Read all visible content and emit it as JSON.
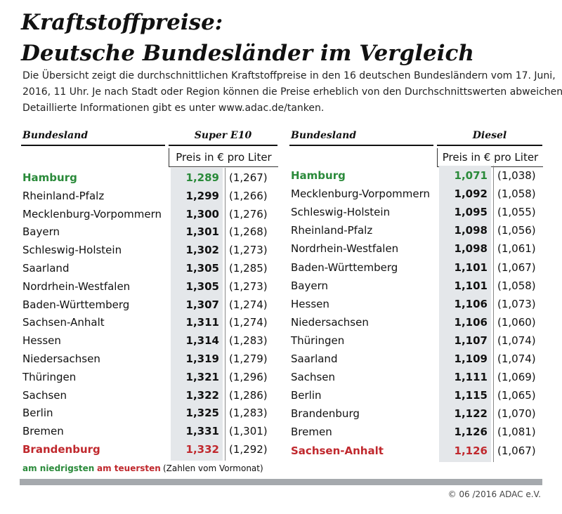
{
  "title": [
    "Kraftstoffpreise:",
    "Deutsche Bundesländer im Vergleich"
  ],
  "intro": [
    "Die Übersicht zeigt die durchschnittlichen Kraftstoffpreise in den 16 deutschen Bundesländern vom 17. Juni,",
    "2016, 11 Uhr. Je nach Stadt oder Region können die Preise erheblich von den Durchschnittswerten abweichen.",
    "Detaillierte Informationen gibt es unter www.adac.de/tanken."
  ],
  "tables": [
    {
      "header": "Bundesland",
      "fuel": "Super E10",
      "unit": "Preis in € pro Liter",
      "rows": [
        [
          "Hamburg",
          "1,289",
          "(1,267)"
        ],
        [
          "Rheinland-Pfalz",
          "1,299",
          "(1,266)"
        ],
        [
          "Mecklenburg-Vorpommern",
          "1,300",
          "(1,276)"
        ],
        [
          "Bayern",
          "1,301",
          "(1,268)"
        ],
        [
          "Schleswig-Holstein",
          "1,302",
          "(1,273)"
        ],
        [
          "Saarland",
          "1,305",
          "(1,285)"
        ],
        [
          "Nordrhein-Westfalen",
          "1,305",
          "(1,273)"
        ],
        [
          "Baden-Württemberg",
          "1,307",
          "(1,274)"
        ],
        [
          "Sachsen-Anhalt",
          "1,311",
          "(1,274)"
        ],
        [
          "Hessen",
          "1,314",
          "(1,283)"
        ],
        [
          "Niedersachsen",
          "1,319",
          "(1,279)"
        ],
        [
          "Thüringen",
          "1,321",
          "(1,296)"
        ],
        [
          "Sachsen",
          "1,322",
          "(1,286)"
        ],
        [
          "Berlin",
          "1,325",
          "(1,283)"
        ],
        [
          "Bremen",
          "1,331",
          "(1,301)"
        ],
        [
          "Brandenburg",
          "1,332",
          "(1,292)"
        ]
      ]
    },
    {
      "header": "Bundesland",
      "fuel": "Diesel",
      "unit": "Preis in € pro Liter",
      "rows": [
        [
          "Hamburg",
          "1,071",
          "(1,038)"
        ],
        [
          "Mecklenburg-Vorpommern",
          "1,092",
          "(1,058)"
        ],
        [
          "Schleswig-Holstein",
          "1,095",
          "(1,055)"
        ],
        [
          "Rheinland-Pfalz",
          "1,098",
          "(1,056)"
        ],
        [
          "Nordrhein-Westfalen",
          "1,098",
          "(1,061)"
        ],
        [
          "Baden-Württemberg",
          "1,101",
          "(1,067)"
        ],
        [
          "Bayern",
          "1,101",
          "(1,058)"
        ],
        [
          "Hessen",
          "1,106",
          "(1,073)"
        ],
        [
          "Niedersachsen",
          "1,106",
          "(1,060)"
        ],
        [
          "Thüringen",
          "1,107",
          "(1,074)"
        ],
        [
          "Saarland",
          "1,109",
          "(1,074)"
        ],
        [
          "Sachsen",
          "1,111",
          "(1,069)"
        ],
        [
          "Berlin",
          "1,115",
          "(1,065)"
        ],
        [
          "Brandenburg",
          "1,122",
          "(1,070)"
        ],
        [
          "Bremen",
          "1,126",
          "(1,081)"
        ],
        [
          "Sachsen-Anhalt",
          "1,126",
          "(1,067)"
        ]
      ]
    }
  ],
  "legend": {
    "lowest": "am niedrigsten",
    "highest": "am teuersten",
    "note": "(Zahlen vom Vormonat)"
  },
  "copyright": "© 06 /2016 ADAC e.V."
}
